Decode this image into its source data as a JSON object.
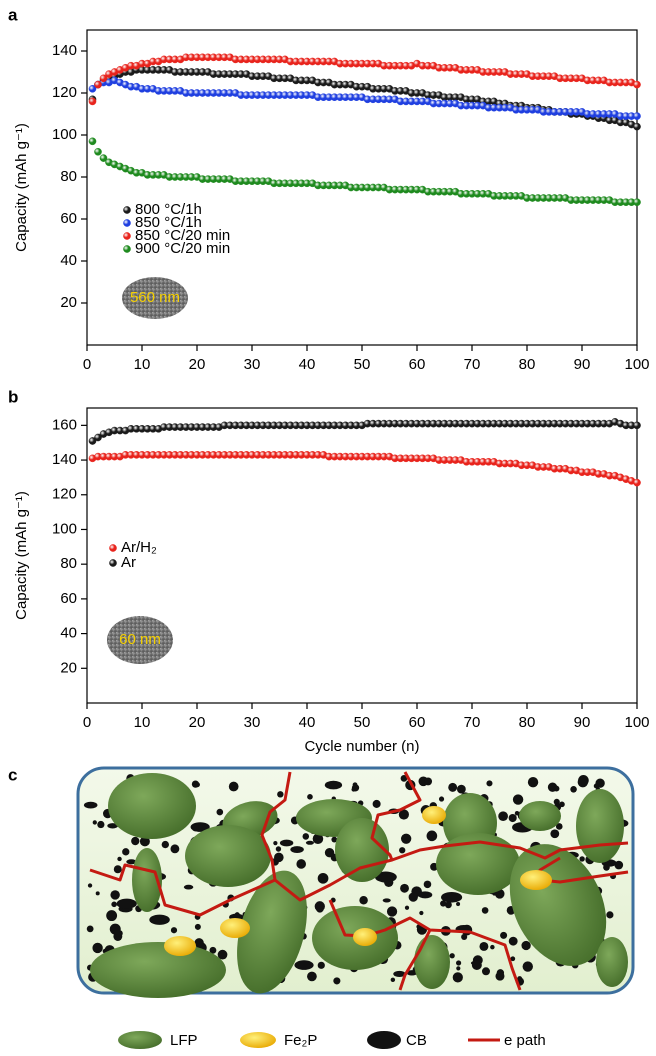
{
  "chart_data": [
    {
      "type": "scatter",
      "panel_label": "a",
      "ylabel": "Capacity (mAh g⁻¹)",
      "inset_label": "560 nm",
      "xlim": [
        0,
        100
      ],
      "ylim": [
        0,
        150
      ],
      "xticks": [
        0,
        10,
        20,
        30,
        40,
        50,
        60,
        70,
        80,
        90,
        100
      ],
      "yticks": [
        20,
        40,
        60,
        80,
        100,
        120,
        140
      ],
      "x": [
        1,
        2,
        3,
        4,
        5,
        6,
        7,
        8,
        9,
        10,
        11,
        12,
        13,
        14,
        15,
        16,
        17,
        18,
        19,
        20,
        21,
        22,
        23,
        24,
        25,
        26,
        27,
        28,
        29,
        30,
        31,
        32,
        33,
        34,
        35,
        36,
        37,
        38,
        39,
        40,
        41,
        42,
        43,
        44,
        45,
        46,
        47,
        48,
        49,
        50,
        51,
        52,
        53,
        54,
        55,
        56,
        57,
        58,
        59,
        60,
        61,
        62,
        63,
        64,
        65,
        66,
        67,
        68,
        69,
        70,
        71,
        72,
        73,
        74,
        75,
        76,
        77,
        78,
        79,
        80,
        81,
        82,
        83,
        84,
        85,
        86,
        87,
        88,
        89,
        90,
        91,
        92,
        93,
        94,
        95,
        96,
        97,
        98,
        99,
        100
      ],
      "series": [
        {
          "name": "800 °C/1h",
          "color": "#1a1a1a",
          "values": [
            117,
            124,
            126,
            127,
            128,
            129,
            130,
            130,
            131,
            131,
            131,
            131,
            131,
            131,
            131,
            130,
            130,
            130,
            130,
            130,
            130,
            130,
            129,
            129,
            129,
            129,
            129,
            129,
            129,
            128,
            128,
            128,
            128,
            127,
            127,
            127,
            127,
            126,
            126,
            126,
            126,
            125,
            125,
            125,
            124,
            124,
            124,
            124,
            123,
            123,
            123,
            122,
            122,
            122,
            122,
            121,
            121,
            121,
            120,
            120,
            120,
            119,
            119,
            119,
            118,
            118,
            118,
            118,
            117,
            117,
            117,
            116,
            116,
            116,
            115,
            115,
            114,
            114,
            114,
            113,
            113,
            113,
            112,
            112,
            111,
            111,
            111,
            110,
            110,
            110,
            109,
            109,
            108,
            108,
            107,
            107,
            106,
            106,
            105,
            104
          ]
        },
        {
          "name": "850 °C/1h",
          "color": "#1f3fe0",
          "values": [
            122,
            124,
            125,
            125,
            126,
            125,
            124,
            123,
            123,
            122,
            122,
            122,
            121,
            121,
            121,
            121,
            121,
            120,
            120,
            120,
            120,
            120,
            120,
            120,
            120,
            120,
            120,
            119,
            119,
            119,
            119,
            119,
            119,
            119,
            119,
            119,
            119,
            119,
            119,
            119,
            119,
            118,
            118,
            118,
            118,
            118,
            118,
            118,
            118,
            118,
            117,
            117,
            117,
            117,
            117,
            117,
            116,
            116,
            116,
            116,
            116,
            116,
            115,
            115,
            115,
            115,
            115,
            114,
            114,
            114,
            114,
            114,
            113,
            113,
            113,
            113,
            113,
            112,
            112,
            112,
            112,
            112,
            111,
            111,
            111,
            111,
            111,
            111,
            111,
            111,
            110,
            110,
            110,
            110,
            110,
            110,
            109,
            109,
            109,
            109
          ]
        },
        {
          "name": "850 °C/20 min",
          "color": "#e8231c",
          "values": [
            116,
            124,
            127,
            129,
            130,
            131,
            132,
            133,
            133,
            134,
            134,
            135,
            135,
            136,
            136,
            136,
            136,
            137,
            137,
            137,
            137,
            137,
            137,
            137,
            137,
            137,
            136,
            136,
            136,
            136,
            136,
            136,
            136,
            136,
            136,
            136,
            135,
            135,
            135,
            135,
            135,
            135,
            135,
            135,
            135,
            134,
            134,
            134,
            134,
            134,
            134,
            134,
            134,
            133,
            133,
            133,
            133,
            133,
            133,
            134,
            133,
            133,
            133,
            132,
            132,
            132,
            132,
            131,
            131,
            131,
            131,
            130,
            130,
            130,
            130,
            130,
            129,
            129,
            129,
            129,
            128,
            128,
            128,
            128,
            128,
            127,
            127,
            127,
            127,
            127,
            126,
            126,
            126,
            126,
            125,
            125,
            125,
            125,
            125,
            124
          ]
        },
        {
          "name": "900 °C/20 min",
          "color": "#1e8a1e",
          "values": [
            97,
            92,
            89,
            87,
            86,
            85,
            84,
            83,
            82,
            82,
            81,
            81,
            81,
            81,
            80,
            80,
            80,
            80,
            80,
            80,
            79,
            79,
            79,
            79,
            79,
            79,
            78,
            78,
            78,
            78,
            78,
            78,
            78,
            77,
            77,
            77,
            77,
            77,
            77,
            77,
            77,
            76,
            76,
            76,
            76,
            76,
            76,
            75,
            75,
            75,
            75,
            75,
            75,
            75,
            74,
            74,
            74,
            74,
            74,
            74,
            74,
            73,
            73,
            73,
            73,
            73,
            73,
            72,
            72,
            72,
            72,
            72,
            72,
            71,
            71,
            71,
            71,
            71,
            71,
            70,
            70,
            70,
            70,
            70,
            70,
            70,
            70,
            69,
            69,
            69,
            69,
            69,
            69,
            69,
            69,
            68,
            68,
            68,
            68,
            68
          ]
        }
      ]
    },
    {
      "type": "scatter",
      "panel_label": "b",
      "ylabel": "Capacity (mAh g⁻¹)",
      "xlabel": "Cycle number (n)",
      "inset_label": "60 nm",
      "xlim": [
        0,
        100
      ],
      "ylim": [
        0,
        170
      ],
      "xticks": [
        0,
        10,
        20,
        30,
        40,
        50,
        60,
        70,
        80,
        90,
        100
      ],
      "yticks": [
        20,
        40,
        60,
        80,
        100,
        120,
        140,
        160
      ],
      "x": [
        1,
        2,
        3,
        4,
        5,
        6,
        7,
        8,
        9,
        10,
        11,
        12,
        13,
        14,
        15,
        16,
        17,
        18,
        19,
        20,
        21,
        22,
        23,
        24,
        25,
        26,
        27,
        28,
        29,
        30,
        31,
        32,
        33,
        34,
        35,
        36,
        37,
        38,
        39,
        40,
        41,
        42,
        43,
        44,
        45,
        46,
        47,
        48,
        49,
        50,
        51,
        52,
        53,
        54,
        55,
        56,
        57,
        58,
        59,
        60,
        61,
        62,
        63,
        64,
        65,
        66,
        67,
        68,
        69,
        70,
        71,
        72,
        73,
        74,
        75,
        76,
        77,
        78,
        79,
        80,
        81,
        82,
        83,
        84,
        85,
        86,
        87,
        88,
        89,
        90,
        91,
        92,
        93,
        94,
        95,
        96,
        97,
        98,
        99,
        100
      ],
      "series": [
        {
          "name": "Ar/H₂",
          "color": "#e8231c",
          "values": [
            141,
            142,
            142,
            142,
            142,
            142,
            143,
            143,
            143,
            143,
            143,
            143,
            143,
            143,
            143,
            143,
            143,
            143,
            143,
            143,
            143,
            143,
            143,
            143,
            143,
            143,
            143,
            143,
            143,
            143,
            143,
            143,
            143,
            143,
            143,
            143,
            143,
            143,
            143,
            143,
            143,
            143,
            143,
            142,
            142,
            142,
            142,
            142,
            142,
            142,
            142,
            142,
            142,
            142,
            142,
            141,
            141,
            141,
            141,
            141,
            141,
            141,
            141,
            140,
            140,
            140,
            140,
            140,
            139,
            139,
            139,
            139,
            139,
            139,
            138,
            138,
            138,
            138,
            137,
            137,
            137,
            136,
            136,
            136,
            135,
            135,
            135,
            134,
            134,
            133,
            133,
            133,
            132,
            132,
            131,
            131,
            130,
            129,
            128,
            127
          ]
        },
        {
          "name": "Ar",
          "color": "#1a1a1a",
          "values": [
            151,
            153,
            155,
            156,
            157,
            157,
            157,
            158,
            158,
            158,
            158,
            158,
            158,
            159,
            159,
            159,
            159,
            159,
            159,
            159,
            159,
            159,
            159,
            159,
            160,
            160,
            160,
            160,
            160,
            160,
            160,
            160,
            160,
            160,
            160,
            160,
            160,
            160,
            160,
            160,
            160,
            160,
            160,
            160,
            160,
            160,
            160,
            160,
            160,
            160,
            161,
            161,
            161,
            161,
            161,
            161,
            161,
            161,
            161,
            161,
            161,
            161,
            161,
            161,
            161,
            161,
            161,
            161,
            161,
            161,
            161,
            161,
            161,
            161,
            161,
            161,
            161,
            161,
            161,
            161,
            161,
            161,
            161,
            161,
            161,
            161,
            161,
            161,
            161,
            161,
            161,
            161,
            161,
            161,
            161,
            162,
            161,
            160,
            160,
            160
          ]
        }
      ]
    }
  ],
  "diagram": {
    "panel_label": "c",
    "legend": [
      "LFP",
      "Fe₂P",
      "CB",
      "e path"
    ]
  }
}
